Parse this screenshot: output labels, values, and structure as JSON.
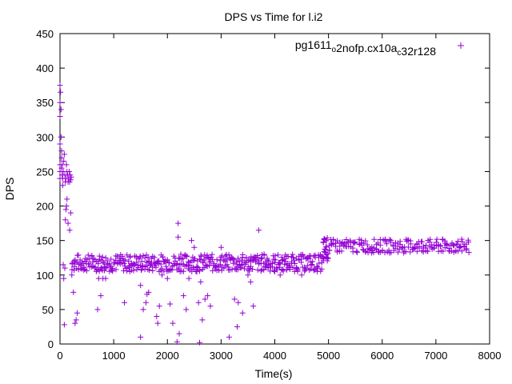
{
  "chart_data": {
    "type": "scatter",
    "title": "DPS vs Time for l.i2",
    "xlabel": "Time(s)",
    "ylabel": "DPS",
    "xlim": [
      0,
      8000
    ],
    "ylim": [
      0,
      450
    ],
    "xticks": [
      0,
      1000,
      2000,
      3000,
      4000,
      5000,
      6000,
      7000,
      8000
    ],
    "yticks": [
      0,
      50,
      100,
      150,
      200,
      250,
      300,
      350,
      400,
      450
    ],
    "grid": false,
    "legend_position": "top-right",
    "series": [
      {
        "name": "pg1611_o2nofp.cx10a_c32r128",
        "legend_parts": [
          {
            "text": "pg1611",
            "sub": false
          },
          {
            "text": "o",
            "sub": true
          },
          {
            "text": "2nofp.cx10a",
            "sub": false
          },
          {
            "text": "c",
            "sub": true
          },
          {
            "text": "32r128",
            "sub": false
          }
        ],
        "color": "#9400d3",
        "marker": "plus",
        "points": [
          [
            0,
            240
          ],
          [
            0,
            250
          ],
          [
            0,
            260
          ],
          [
            0,
            290
          ],
          [
            0,
            330
          ],
          [
            0,
            350
          ],
          [
            0,
            375
          ],
          [
            10,
            365
          ],
          [
            20,
            340
          ],
          [
            20,
            300
          ],
          [
            30,
            280
          ],
          [
            30,
            270
          ],
          [
            30,
            255
          ],
          [
            40,
            260
          ],
          [
            40,
            245
          ],
          [
            50,
            240
          ],
          [
            50,
            230
          ],
          [
            60,
            250
          ],
          [
            70,
            265
          ],
          [
            80,
            275
          ],
          [
            90,
            245
          ],
          [
            100,
            235
          ],
          [
            110,
            240
          ],
          [
            120,
            260
          ],
          [
            130,
            250
          ],
          [
            140,
            245
          ],
          [
            150,
            235
          ],
          [
            160,
            240
          ],
          [
            170,
            250
          ],
          [
            180,
            235
          ],
          [
            190,
            245
          ],
          [
            200,
            238
          ],
          [
            210,
            242
          ],
          [
            60,
            115
          ],
          [
            70,
            95
          ],
          [
            80,
            28
          ],
          [
            90,
            110
          ],
          [
            100,
            180
          ],
          [
            110,
            195
          ],
          [
            120,
            200
          ],
          [
            130,
            210
          ],
          [
            150,
            175
          ],
          [
            180,
            165
          ],
          [
            200,
            190
          ],
          [
            220,
            100
          ],
          [
            250,
            75
          ],
          [
            280,
            30
          ],
          [
            300,
            35
          ],
          [
            320,
            45
          ],
          [
            700,
            50
          ],
          [
            720,
            95
          ],
          [
            760,
            70
          ],
          [
            800,
            95
          ],
          [
            850,
            95
          ],
          [
            1200,
            60
          ],
          [
            1300,
            105
          ],
          [
            1500,
            10
          ],
          [
            1500,
            85
          ],
          [
            1550,
            50
          ],
          [
            1600,
            60
          ],
          [
            1620,
            72
          ],
          [
            1650,
            75
          ],
          [
            1800,
            40
          ],
          [
            1820,
            30
          ],
          [
            1850,
            55
          ],
          [
            1900,
            100
          ],
          [
            2000,
            95
          ],
          [
            2050,
            58
          ],
          [
            2100,
            30
          ],
          [
            2180,
            3
          ],
          [
            2200,
            175
          ],
          [
            2200,
            155
          ],
          [
            2220,
            15
          ],
          [
            2250,
            130
          ],
          [
            2300,
            70
          ],
          [
            2350,
            50
          ],
          [
            2400,
            95
          ],
          [
            2450,
            150
          ],
          [
            2500,
            140
          ],
          [
            2550,
            105
          ],
          [
            2580,
            60
          ],
          [
            2600,
            2
          ],
          [
            2620,
            90
          ],
          [
            2650,
            35
          ],
          [
            2700,
            65
          ],
          [
            2750,
            70
          ],
          [
            2800,
            55
          ],
          [
            3000,
            140
          ],
          [
            3150,
            10
          ],
          [
            3250,
            65
          ],
          [
            3300,
            25
          ],
          [
            3320,
            60
          ],
          [
            3400,
            45
          ],
          [
            3500,
            100
          ],
          [
            3550,
            90
          ],
          [
            3600,
            55
          ],
          [
            3700,
            165
          ],
          [
            3800,
            130
          ],
          [
            3850,
            115
          ],
          [
            4000,
            105
          ],
          [
            4100,
            100
          ],
          [
            4200,
            120
          ],
          [
            4500,
            100
          ],
          [
            4800,
            110
          ]
        ],
        "bands": [
          {
            "x": [
              220,
              4900
            ],
            "y": [
              105,
              130
            ],
            "step": 30,
            "rows": 3
          },
          {
            "x": [
              4900,
              5000
            ],
            "y": [
              120,
              155
            ],
            "step": 15,
            "rows": 3
          },
          {
            "x": [
              5000,
              7600
            ],
            "y": [
              132,
              152
            ],
            "step": 40,
            "rows": 3
          }
        ]
      }
    ]
  }
}
